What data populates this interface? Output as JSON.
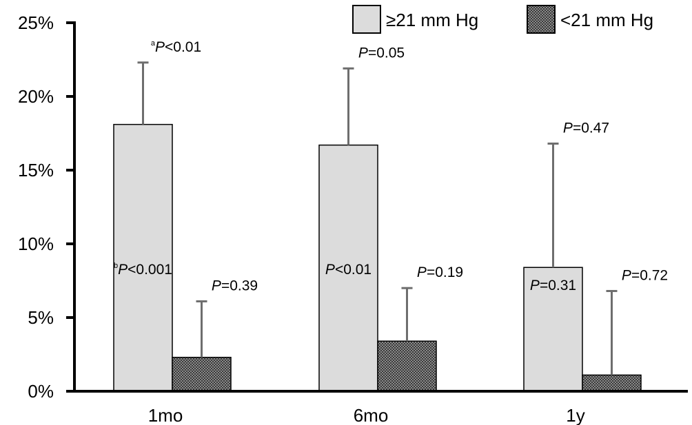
{
  "chart_data": {
    "type": "bar",
    "title": "",
    "xlabel": "",
    "ylabel": "",
    "categories": [
      "1mo",
      "6mo",
      "1y"
    ],
    "ylim": [
      0,
      25
    ],
    "yticks": [
      "0%",
      "5%",
      "10%",
      "15%",
      "20%",
      "25%"
    ],
    "ytick_values": [
      0,
      5,
      10,
      15,
      20,
      25
    ],
    "legend_position": "top-right",
    "series": [
      {
        "name": "≥21 mm Hg",
        "color": "#dcdcdc",
        "pattern": "solid",
        "values": [
          18.1,
          16.7,
          8.4
        ],
        "error_upper": [
          22.3,
          21.9,
          16.8
        ]
      },
      {
        "name": "<21 mm Hg",
        "color": "#555555",
        "pattern": "checkered",
        "values": [
          2.3,
          3.4,
          1.1
        ],
        "error_upper": [
          6.1,
          7.0,
          6.8
        ]
      }
    ],
    "annotations": [
      {
        "category": "1mo",
        "series": 0,
        "placement": "above-error",
        "sup": "a",
        "p": "P",
        "text": "<0.01"
      },
      {
        "category": "1mo",
        "series": 0,
        "placement": "inside-bar",
        "sup": "b",
        "p": "P",
        "text": "<0.001"
      },
      {
        "category": "1mo",
        "series": 1,
        "placement": "above-error",
        "sup": "",
        "p": "P",
        "text": "=0.39"
      },
      {
        "category": "6mo",
        "series": 0,
        "placement": "above-error",
        "sup": "",
        "p": "P",
        "text": "=0.05"
      },
      {
        "category": "6mo",
        "series": 0,
        "placement": "inside-bar",
        "sup": "",
        "p": "P",
        "text": "<0.01"
      },
      {
        "category": "6mo",
        "series": 1,
        "placement": "above-error",
        "sup": "",
        "p": "P",
        "text": "=0.19"
      },
      {
        "category": "1y",
        "series": 0,
        "placement": "above-error",
        "sup": "",
        "p": "P",
        "text": "=0.47"
      },
      {
        "category": "1y",
        "series": 0,
        "placement": "inside-bar",
        "sup": "",
        "p": "P",
        "text": "=0.31"
      },
      {
        "category": "1y",
        "series": 1,
        "placement": "above-error",
        "sup": "",
        "p": "P",
        "text": "=0.72"
      }
    ]
  }
}
